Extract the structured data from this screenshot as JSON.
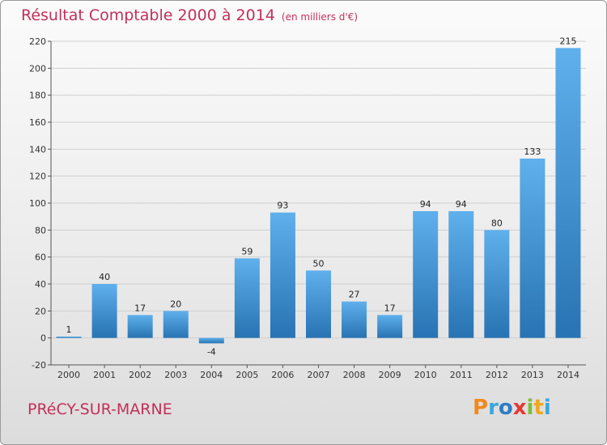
{
  "chart_data": {
    "type": "bar",
    "title": "Résultat Comptable 2000 à 2014",
    "subtitle": "(en milliers d'€)",
    "categories": [
      "2000",
      "2001",
      "2002",
      "2003",
      "2004",
      "2005",
      "2006",
      "2007",
      "2008",
      "2009",
      "2010",
      "2011",
      "2012",
      "2013",
      "2014"
    ],
    "values": [
      1,
      40,
      17,
      20,
      -4,
      59,
      93,
      50,
      27,
      17,
      94,
      94,
      80,
      133,
      215
    ],
    "ylim": [
      -20,
      220
    ],
    "yticks": [
      -20,
      0,
      20,
      40,
      60,
      80,
      100,
      120,
      140,
      160,
      180,
      200,
      220
    ],
    "xlabel": "",
    "ylabel": "",
    "grid": true,
    "bar_color": "#3d8fd6"
  },
  "commune": "PRéCY-SUR-MARNE",
  "logo": {
    "text": "Proxiti",
    "letters": [
      {
        "ch": "P",
        "color": "#f08a1c"
      },
      {
        "ch": "r",
        "color": "#3aa6de"
      },
      {
        "ch": "o",
        "color": "#2e7dc2"
      },
      {
        "ch": "x",
        "color": "#e53935"
      },
      {
        "ch": "i",
        "color": "#7bbf3a"
      },
      {
        "ch": "t",
        "color": "#f0a81c"
      },
      {
        "ch": "i",
        "color": "#3aa6de"
      }
    ]
  }
}
